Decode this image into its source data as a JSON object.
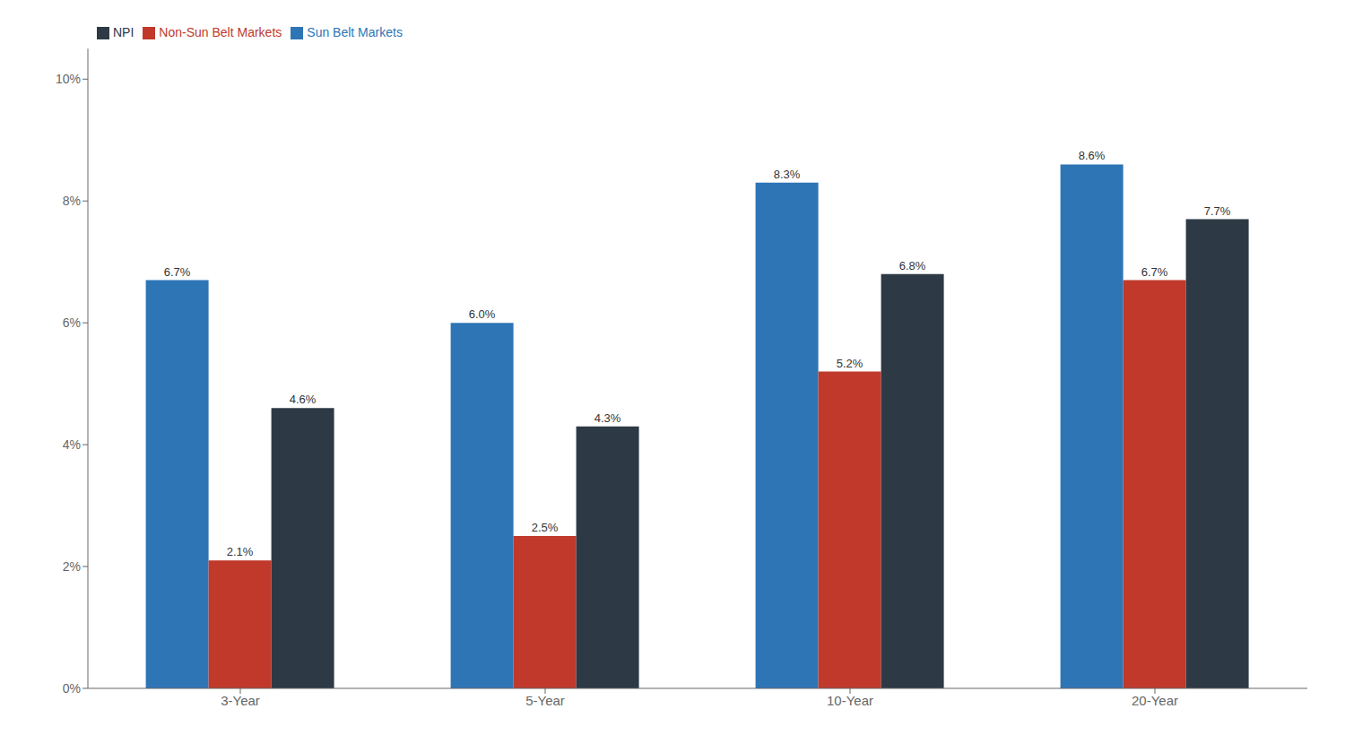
{
  "chart_data": {
    "type": "bar",
    "categories": [
      "3-Year",
      "5-Year",
      "10-Year",
      "20-Year"
    ],
    "series": [
      {
        "name": "Sun Belt Markets",
        "color": "#2E75B6",
        "values": [
          6.7,
          6.0,
          8.3,
          8.6
        ],
        "value_labels": [
          "6.7%",
          "6.0%",
          "8.3%",
          "8.6%"
        ]
      },
      {
        "name": "Non-Sun Belt Markets",
        "color": "#C0392B",
        "values": [
          2.1,
          2.5,
          5.2,
          6.7
        ],
        "value_labels": [
          "2.1%",
          "2.5%",
          "5.2%",
          "6.7%"
        ]
      },
      {
        "name": "NPI",
        "color": "#2D3A45",
        "values": [
          4.6,
          4.3,
          6.8,
          7.7
        ],
        "value_labels": [
          "4.6%",
          "4.3%",
          "6.8%",
          "7.7%"
        ]
      }
    ],
    "ylim": [
      0,
      10.5
    ],
    "yticks": [
      {
        "value": 0,
        "label": "0%"
      },
      {
        "value": 2,
        "label": "2%"
      },
      {
        "value": 4,
        "label": "4%"
      },
      {
        "value": 6,
        "label": "6%"
      },
      {
        "value": 8,
        "label": "8%"
      },
      {
        "value": 10,
        "label": "10%"
      }
    ],
    "grid": false,
    "legend": "upper left",
    "data_labels": true
  }
}
